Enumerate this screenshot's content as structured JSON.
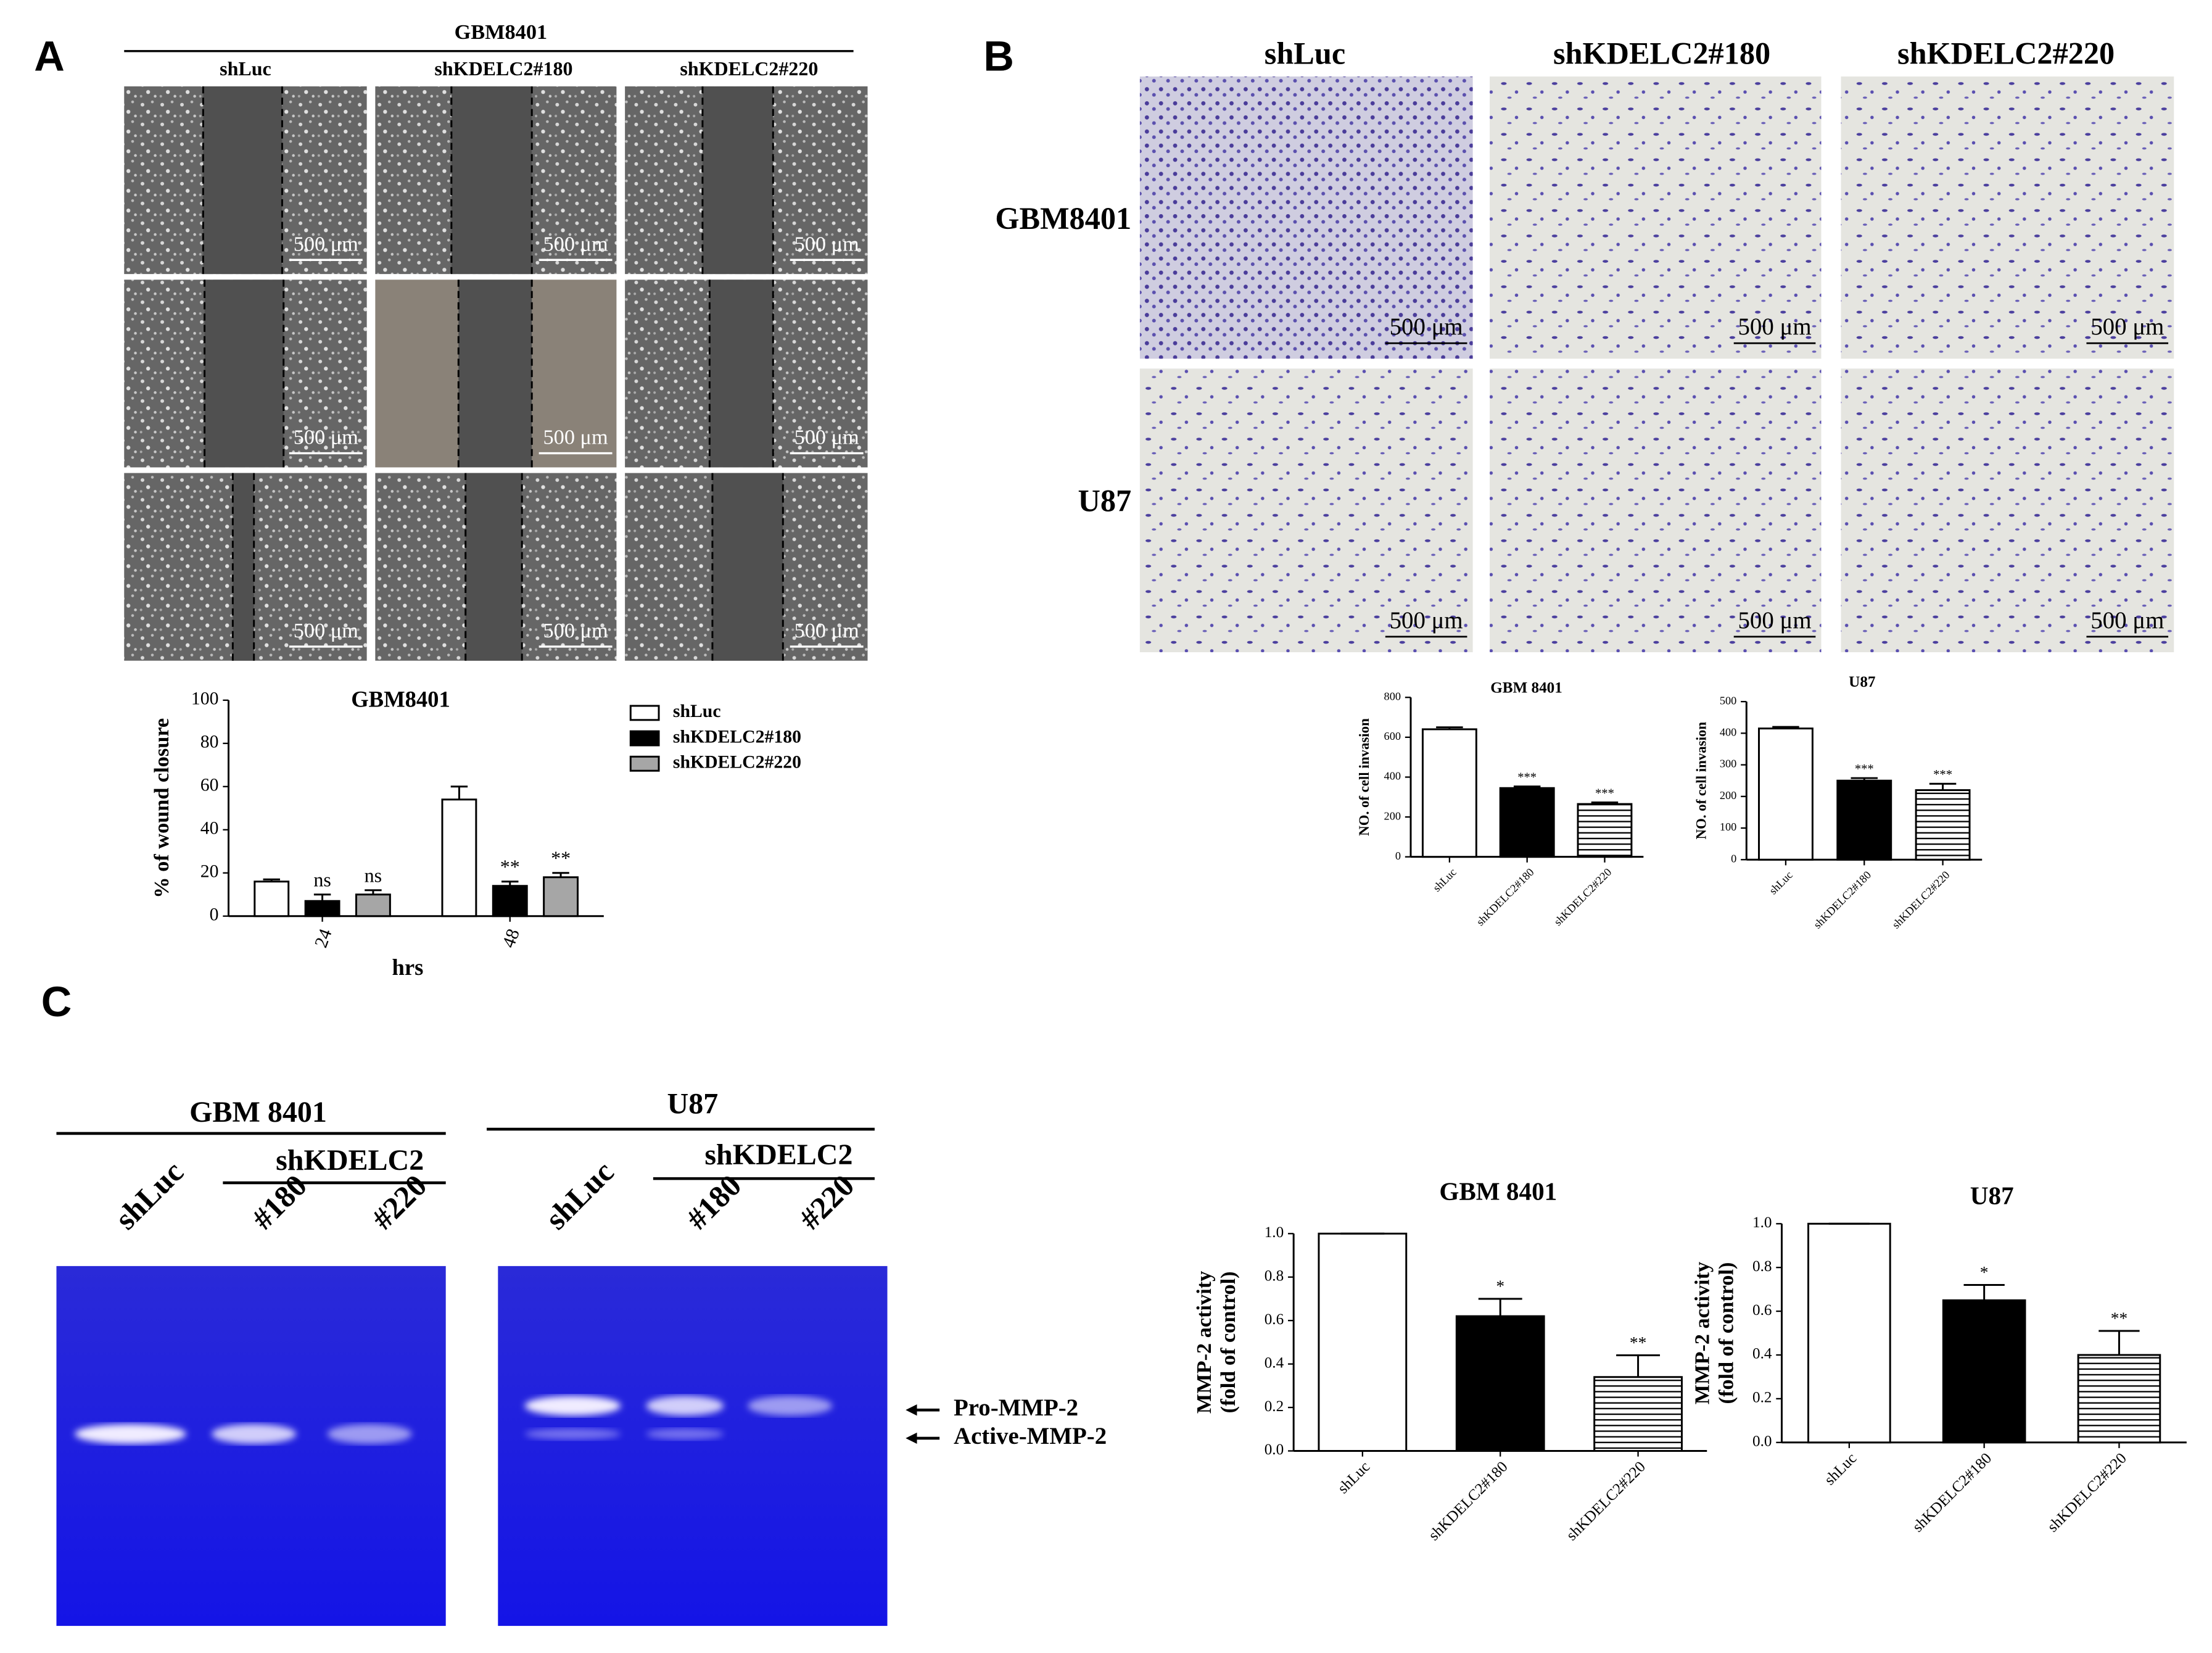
{
  "panel_a": {
    "label": "A",
    "cell_line": "GBM8401",
    "columns": [
      "shLuc",
      "shKDELC2#180",
      "shKDELC2#220"
    ],
    "scale_bar": "500 μm"
  },
  "panel_b": {
    "label": "B",
    "columns": [
      "shLuc",
      "shKDELC2#180",
      "shKDELC2#220"
    ],
    "rows": [
      "GBM8401",
      "U87"
    ],
    "scale_bar": "500 μm"
  },
  "panel_c": {
    "label": "C",
    "gels": [
      {
        "cell_line": "GBM 8401",
        "group": "shKDELC2",
        "lanes": [
          "shLuc",
          "#180",
          "#220"
        ]
      },
      {
        "cell_line": "U87",
        "group": "shKDELC2",
        "lanes": [
          "shLuc",
          "#180",
          "#220"
        ]
      }
    ],
    "bands": [
      "Pro-MMP-2",
      "Active-MMP-2"
    ]
  },
  "chart_data": [
    {
      "type": "bar",
      "title": "GBM8401",
      "ylabel": "% of wound closure",
      "xlabel": "hrs",
      "categories": [
        "24",
        "48"
      ],
      "series": [
        {
          "name": "shLuc",
          "color": "#ffffff",
          "values": [
            16,
            54
          ],
          "errors": [
            1,
            6
          ]
        },
        {
          "name": "shKDELC2#180",
          "color": "#000000",
          "values": [
            7,
            14
          ],
          "errors": [
            3,
            2
          ],
          "annotations": [
            "ns",
            "**"
          ]
        },
        {
          "name": "shKDELC2#220",
          "color": "#a6a6a6",
          "values": [
            10,
            18
          ],
          "errors": [
            2,
            2
          ],
          "annotations": [
            "ns",
            "**"
          ]
        }
      ],
      "ylim": [
        0,
        100
      ],
      "yticks": [
        0,
        20,
        40,
        60,
        80,
        100
      ],
      "legend": "right"
    },
    {
      "type": "bar",
      "title": "GBM 8401",
      "ylabel": "NO. of cell invasion",
      "categories": [
        "shLuc",
        "shKDELC2#180",
        "shKDELC2#220"
      ],
      "values": [
        640,
        345,
        265
      ],
      "errors": [
        10,
        8,
        8
      ],
      "annotations": [
        null,
        "***",
        "***"
      ],
      "colors": [
        "#ffffff",
        "#000000",
        "#ffffff"
      ],
      "hatch": [
        false,
        false,
        true
      ],
      "ylim": [
        0,
        800
      ],
      "yticks": [
        0,
        200,
        400,
        600,
        800
      ]
    },
    {
      "type": "bar",
      "title": "U87",
      "ylabel": "NO. of cell invasion",
      "categories": [
        "shLuc",
        "shKDELC2#180",
        "shKDELC2#220"
      ],
      "values": [
        415,
        250,
        220
      ],
      "errors": [
        5,
        8,
        20
      ],
      "annotations": [
        null,
        "***",
        "***"
      ],
      "colors": [
        "#ffffff",
        "#000000",
        "#ffffff"
      ],
      "hatch": [
        false,
        false,
        true
      ],
      "ylim": [
        0,
        500
      ],
      "yticks": [
        0,
        100,
        200,
        300,
        400,
        500
      ]
    },
    {
      "type": "bar",
      "title": "GBM 8401",
      "ylabel": [
        "MMP-2 activity",
        "(fold of control)"
      ],
      "categories": [
        "shLuc",
        "shKDELC2#180",
        "shKDELC2#220"
      ],
      "values": [
        1.0,
        0.62,
        0.34
      ],
      "errors": [
        0,
        0.08,
        0.1
      ],
      "annotations": [
        null,
        "*",
        "**"
      ],
      "colors": [
        "#ffffff",
        "#000000",
        "#ffffff"
      ],
      "hatch": [
        false,
        false,
        true
      ],
      "ylim": [
        0,
        1.0
      ],
      "yticks": [
        {
          "value": 0,
          "label": "0.0"
        },
        {
          "value": 0.2,
          "label": "0.2"
        },
        {
          "value": 0.4,
          "label": "0.4"
        },
        {
          "value": 0.6,
          "label": "0.6"
        },
        {
          "value": 0.8,
          "label": "0.8"
        },
        {
          "value": 1.0,
          "label": "1.0"
        }
      ]
    },
    {
      "type": "bar",
      "title": "U87",
      "ylabel": [
        "MMP-2 activity",
        "(fold of control)"
      ],
      "categories": [
        "shLuc",
        "shKDELC2#180",
        "shKDELC2#220"
      ],
      "values": [
        1.0,
        0.65,
        0.4
      ],
      "errors": [
        0,
        0.07,
        0.11
      ],
      "annotations": [
        null,
        "*",
        "**"
      ],
      "colors": [
        "#ffffff",
        "#000000",
        "#ffffff"
      ],
      "hatch": [
        false,
        false,
        true
      ],
      "ylim": [
        0,
        1.0
      ],
      "yticks": [
        {
          "value": 0,
          "label": "0.0"
        },
        {
          "value": 0.2,
          "label": "0.2"
        },
        {
          "value": 0.4,
          "label": "0.4"
        },
        {
          "value": 0.6,
          "label": "0.6"
        },
        {
          "value": 0.8,
          "label": "0.8"
        },
        {
          "value": 1.0,
          "label": "1.0"
        }
      ]
    }
  ]
}
